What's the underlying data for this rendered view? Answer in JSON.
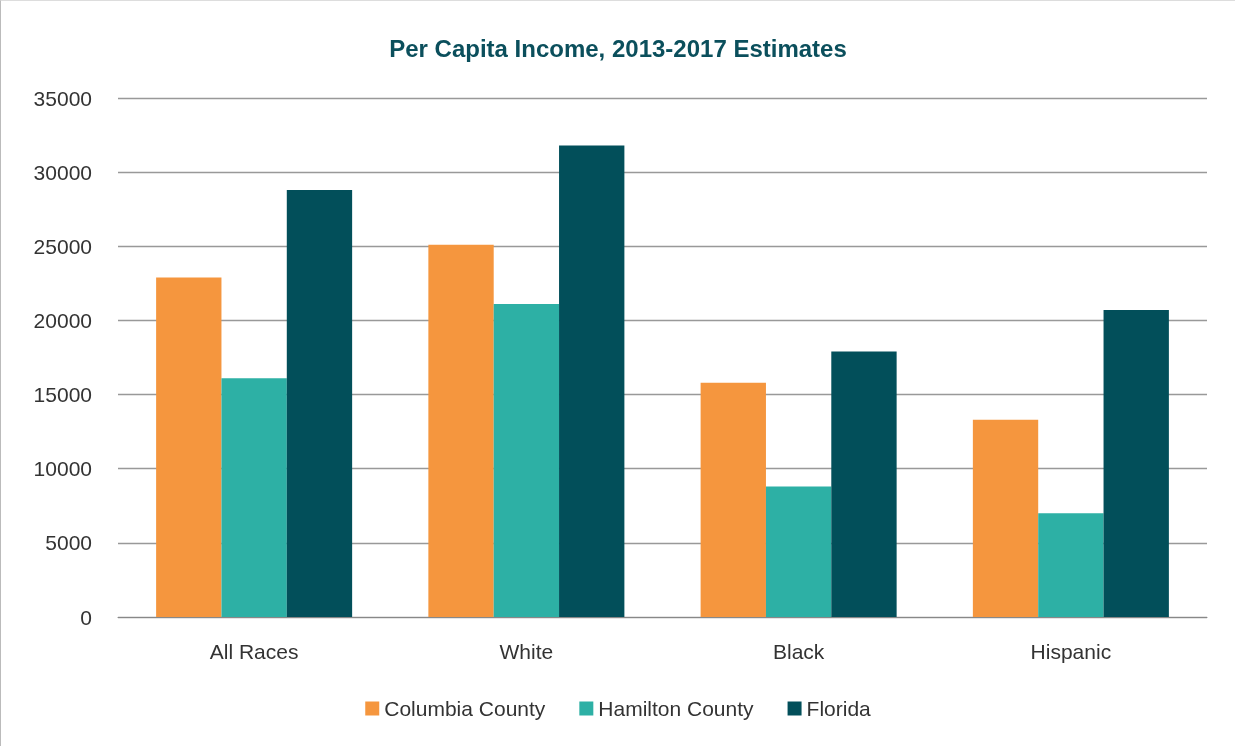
{
  "chart_data": {
    "type": "bar",
    "title": "Per Capita Income, 2013-2017 Estimates",
    "categories": [
      "All Races",
      "White",
      "Black",
      "Hispanic"
    ],
    "series": [
      {
        "name": "Columbia County",
        "color": "#f5963e",
        "values": [
          22900,
          25100,
          15800,
          13300
        ]
      },
      {
        "name": "Hamilton County",
        "color": "#2db0a5",
        "values": [
          16100,
          21100,
          8800,
          7000
        ]
      },
      {
        "name": "Florida",
        "color": "#024f5a",
        "values": [
          28800,
          31800,
          17900,
          20700
        ]
      }
    ],
    "ylim": [
      0,
      35000
    ],
    "yticks": [
      0,
      5000,
      10000,
      15000,
      20000,
      25000,
      30000,
      35000
    ],
    "grid": "y",
    "legend": "bottom"
  }
}
